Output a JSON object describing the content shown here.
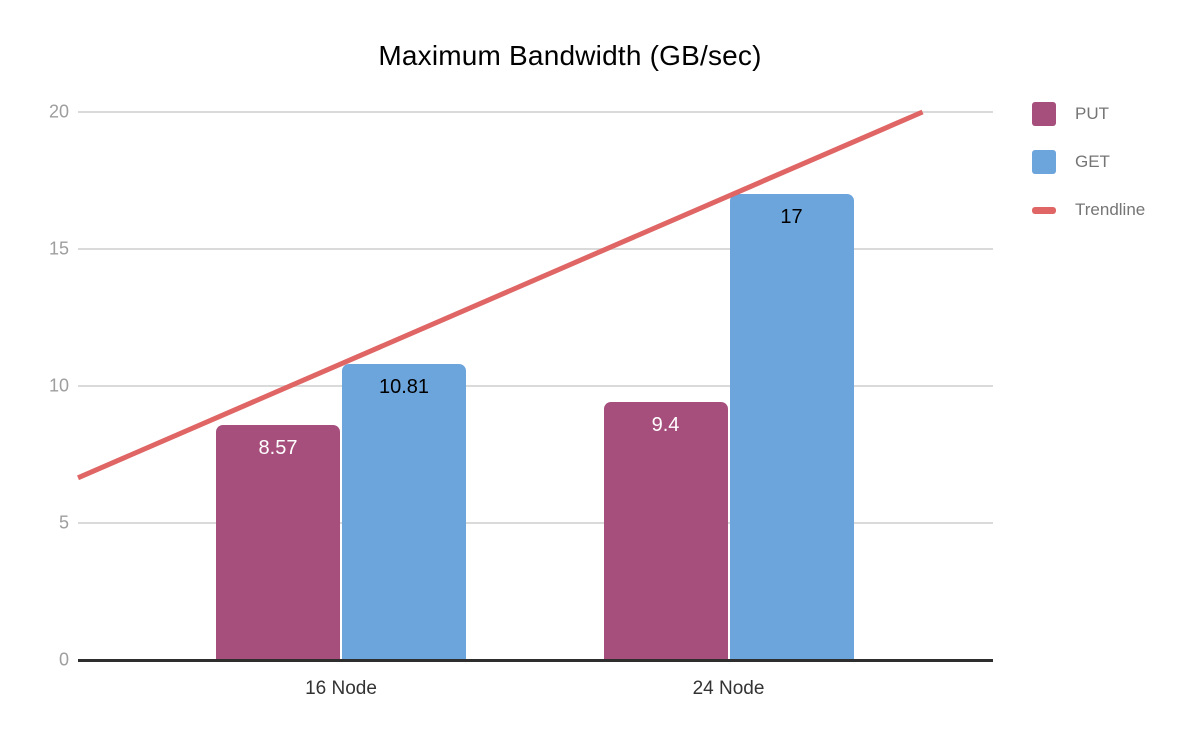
{
  "chart_data": {
    "type": "bar",
    "title": "Maximum Bandwidth (GB/sec)",
    "categories": [
      "16 Node",
      "24 Node"
    ],
    "series": [
      {
        "name": "PUT",
        "color": "#a64f7d",
        "values": [
          8.57,
          9.4
        ],
        "labels": [
          "8.57",
          "9.4"
        ],
        "label_color": "#ffffff"
      },
      {
        "name": "GET",
        "color": "#6ca4dc",
        "values": [
          10.81,
          17
        ],
        "labels": [
          "10.81",
          "17"
        ],
        "label_color": "#000000"
      }
    ],
    "trendline": {
      "name": "Trendline",
      "color": "#e06666",
      "points": [
        {
          "x_frac": 0.0,
          "value": 6.65
        },
        {
          "x_frac": 0.923,
          "value": 20
        }
      ]
    },
    "y_axis": {
      "min": 0,
      "max": 20,
      "ticks": [
        0,
        5,
        10,
        15,
        20
      ],
      "tick_labels": [
        "0",
        "5",
        "10",
        "15",
        "20"
      ],
      "tick_label_color": "#9e9e9e"
    },
    "x_axis": {
      "label_color": "#333333"
    },
    "grid": true,
    "gridline_color": "#dadada",
    "baseline_color": "#2e2e2e",
    "legend": {
      "position": "right",
      "text_color": "#757575",
      "items": [
        {
          "label": "PUT",
          "color": "#a64f7d",
          "shape": "square"
        },
        {
          "label": "GET",
          "color": "#6ca4dc",
          "shape": "square"
        },
        {
          "label": "Trendline",
          "color": "#e06666",
          "shape": "line"
        }
      ]
    }
  }
}
